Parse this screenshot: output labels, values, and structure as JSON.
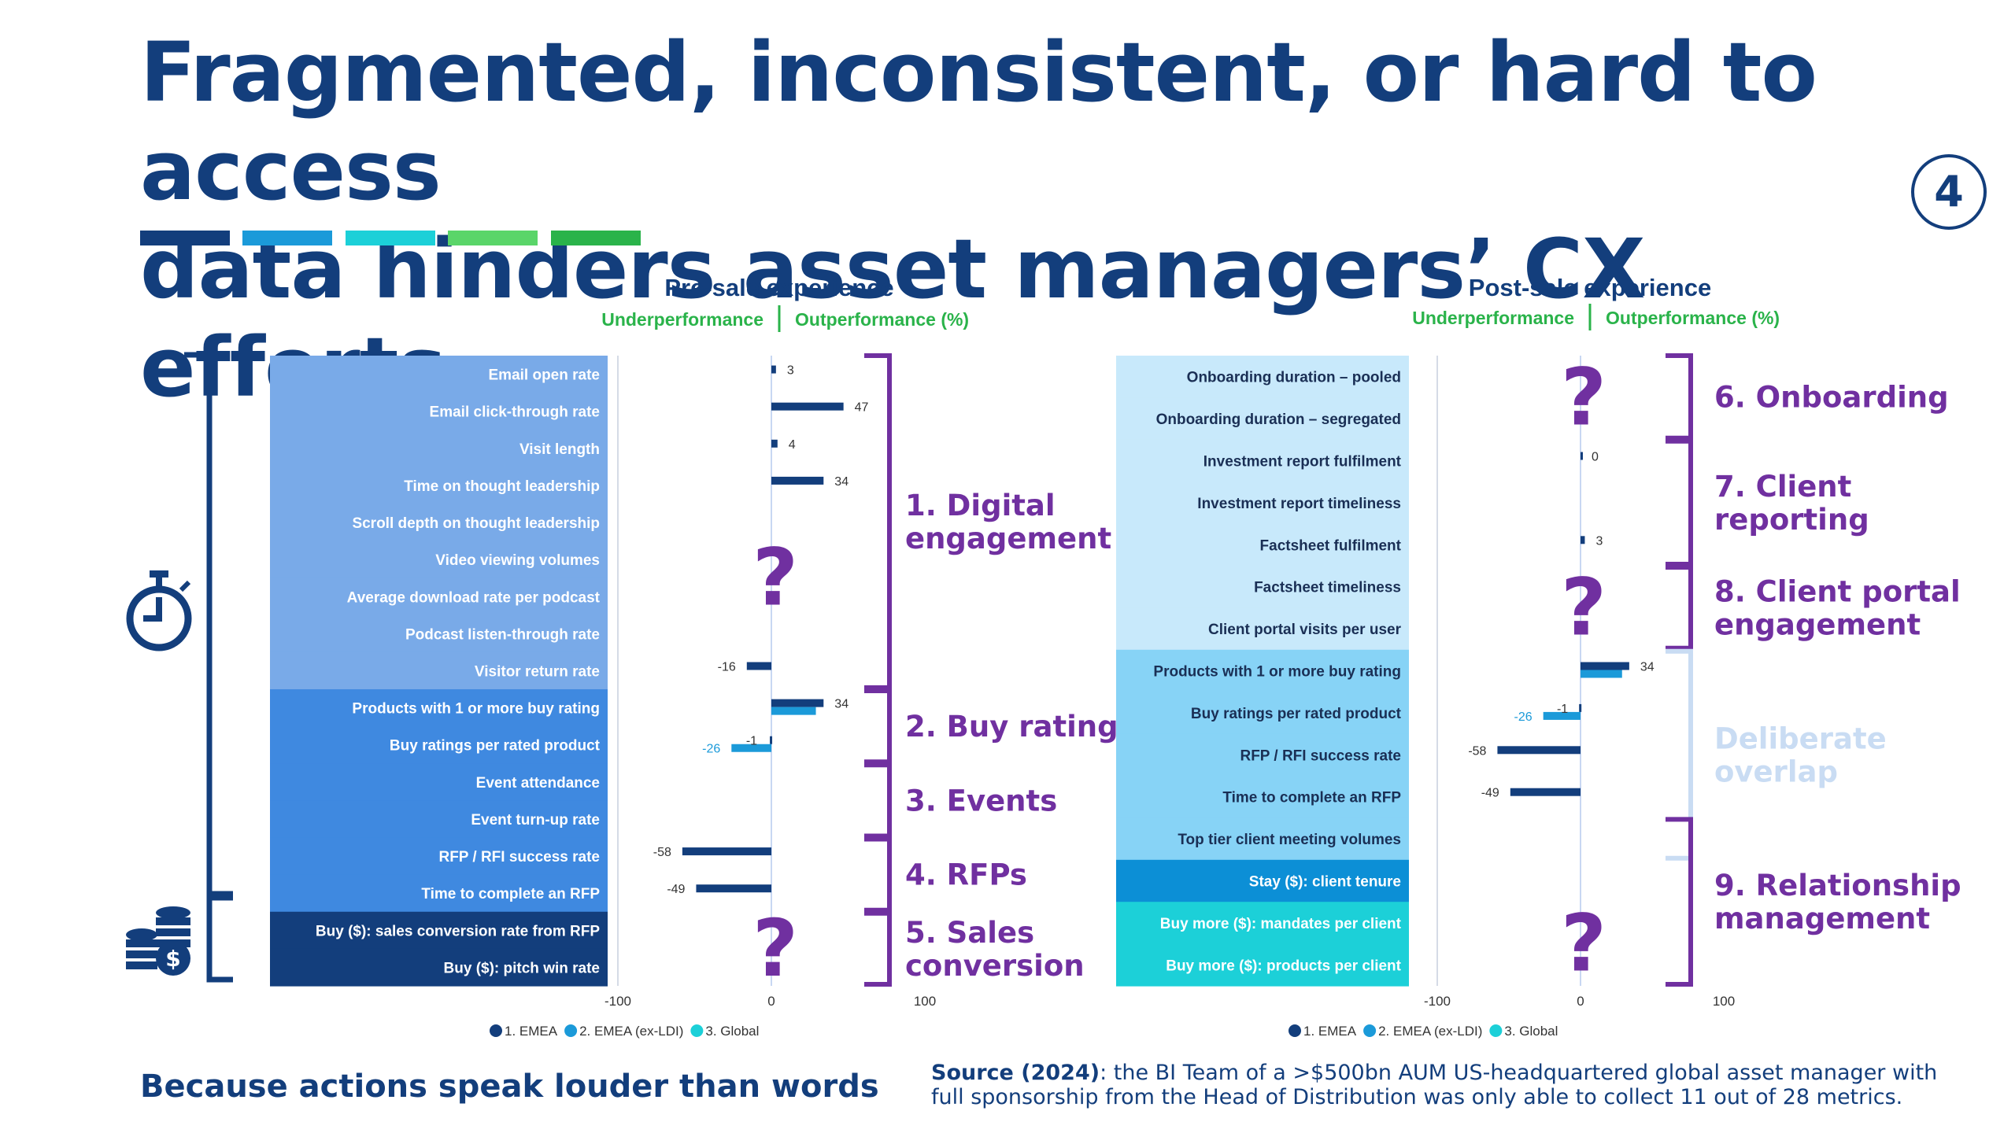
{
  "title_lines": [
    "Fragmented, inconsistent, or hard to access",
    "data hinders asset managers’ CX efforts"
  ],
  "page_number": "4",
  "tagline": "Because actions speak louder than words",
  "source_label": "Source (2024)",
  "source_text": ": the BI Team of a >$500bn AUM US-headquartered global asset manager with full sponsorship from the Head of Distribution was only able to collect 11 out of 28 metrics.",
  "accent_colors": [
    "#133e7c",
    "#1b9ad9",
    "#1cd0d8",
    "#5ad569",
    "#2ab34a"
  ],
  "icons": [
    "stopwatch-icon",
    "coins-icon",
    "dollar-icon"
  ],
  "chart_data": [
    {
      "type": "bar",
      "orientation": "horizontal",
      "title": "Pre-sale experience",
      "subtitle_left": "Underperformance",
      "subtitle_right": "Outperformance (%)",
      "xlim": [
        -100,
        100
      ],
      "xticks": [
        "-100",
        "0",
        "100"
      ],
      "legend": [
        "1. EMEA",
        "2. EMEA (ex-LDI)",
        "3. Global"
      ],
      "legend_position": "bottom",
      "series_colors": [
        "#133e7c",
        "#1b9ad9",
        "#1cd0d8"
      ],
      "categories": [
        "Email open rate",
        "Email click-through rate",
        "Visit length",
        "Time on thought leadership",
        "Scroll depth on thought leadership",
        "Video viewing volumes",
        "Average download rate per podcast",
        "Podcast listen-through rate",
        "Visitor return rate",
        "Products with 1 or more buy rating",
        "Buy ratings per rated product",
        "Event attendance",
        "Event turn-up rate",
        "RFP / RFI success rate",
        "Time to complete an RFP",
        "Buy ($): sales conversion rate from RFP",
        "Buy ($): pitch win rate"
      ],
      "row_colors": [
        "#79aae8",
        "#79aae8",
        "#79aae8",
        "#79aae8",
        "#79aae8",
        "#79aae8",
        "#79aae8",
        "#79aae8",
        "#79aae8",
        "#3f89e0",
        "#3f89e0",
        "#3f89e0",
        "#3f89e0",
        "#3f89e0",
        "#3f89e0",
        "#133e7c",
        "#133e7c"
      ],
      "series": [
        {
          "name": "1. EMEA",
          "values": [
            3,
            47,
            4,
            34,
            null,
            null,
            null,
            null,
            -16,
            34,
            -1,
            null,
            null,
            -58,
            -49,
            null,
            null
          ]
        },
        {
          "name": "2. EMEA (ex-LDI)",
          "values": [
            null,
            null,
            null,
            null,
            null,
            null,
            null,
            null,
            null,
            29,
            -26,
            null,
            null,
            null,
            null,
            null,
            null
          ]
        }
      ],
      "data_labels": [
        {
          "row": 0,
          "series": 0,
          "text": "3"
        },
        {
          "row": 1,
          "series": 0,
          "text": "47"
        },
        {
          "row": 2,
          "series": 0,
          "text": "4"
        },
        {
          "row": 3,
          "series": 0,
          "text": "34"
        },
        {
          "row": 8,
          "series": 0,
          "text": "-16"
        },
        {
          "row": 9,
          "series": 0,
          "text": "34"
        },
        {
          "row": 10,
          "series": 0,
          "text": "-1"
        },
        {
          "row": 10,
          "series": 1,
          "text": "-26"
        },
        {
          "row": 13,
          "series": 0,
          "text": "-58"
        },
        {
          "row": 14,
          "series": 0,
          "text": "-49"
        }
      ],
      "question_marks": [
        {
          "rows": [
            4,
            7
          ],
          "text": "?"
        },
        {
          "rows": [
            15,
            16
          ],
          "text": "?"
        }
      ],
      "groups": [
        {
          "rows": [
            0,
            8
          ],
          "label": "1. Digital engagement",
          "color": "#7030a0"
        },
        {
          "rows": [
            9,
            10
          ],
          "label": "2. Buy ratings",
          "color": "#7030a0"
        },
        {
          "rows": [
            11,
            12
          ],
          "label": "3. Events",
          "color": "#7030a0"
        },
        {
          "rows": [
            13,
            14
          ],
          "label": "4. RFPs",
          "color": "#7030a0"
        },
        {
          "rows": [
            15,
            16
          ],
          "label": "5. Sales conversion",
          "color": "#7030a0"
        }
      ]
    },
    {
      "type": "bar",
      "orientation": "horizontal",
      "title": "Post-sale experience",
      "subtitle_left": "Underperformance",
      "subtitle_right": "Outperformance (%)",
      "xlim": [
        -100,
        100
      ],
      "xticks": [
        "-100",
        "0",
        "100"
      ],
      "legend": [
        "1. EMEA",
        "2. EMEA (ex-LDI)",
        "3. Global"
      ],
      "legend_position": "bottom",
      "series_colors": [
        "#133e7c",
        "#1b9ad9",
        "#1cd0d8"
      ],
      "categories": [
        "Onboarding duration – pooled",
        "Onboarding duration – segregated",
        "Investment report fulfilment",
        "Investment report timeliness",
        "Factsheet fulfilment",
        "Factsheet timeliness",
        "Client portal visits per user",
        "Products with 1 or more buy rating",
        "Buy ratings per rated product",
        "RFP / RFI success rate",
        "Time to complete an RFP",
        "Top tier client meeting volumes",
        "Stay ($): client tenure",
        "Buy more ($): mandates per client",
        "Buy more ($): products per client"
      ],
      "row_colors": [
        "#c8e9fb",
        "#c8e9fb",
        "#c8e9fb",
        "#c8e9fb",
        "#c8e9fb",
        "#c8e9fb",
        "#c8e9fb",
        "#87d3f6",
        "#87d3f6",
        "#87d3f6",
        "#87d3f6",
        "#87d3f6",
        "#0c8fd6",
        "#1cd0d8",
        "#1cd0d8"
      ],
      "series": [
        {
          "name": "1. EMEA",
          "values": [
            null,
            null,
            0,
            null,
            3,
            null,
            null,
            34,
            -1,
            -58,
            -49,
            null,
            null,
            null,
            null
          ]
        },
        {
          "name": "2. EMEA (ex-LDI)",
          "values": [
            null,
            null,
            null,
            null,
            null,
            null,
            null,
            29,
            -26,
            null,
            null,
            null,
            null,
            null,
            null
          ]
        }
      ],
      "data_labels": [
        {
          "row": 2,
          "series": 0,
          "text": "0"
        },
        {
          "row": 4,
          "series": 0,
          "text": "3"
        },
        {
          "row": 7,
          "series": 0,
          "text": "34"
        },
        {
          "row": 8,
          "series": 0,
          "text": "-1"
        },
        {
          "row": 8,
          "series": 1,
          "text": "-26"
        },
        {
          "row": 9,
          "series": 0,
          "text": "-58"
        },
        {
          "row": 10,
          "series": 0,
          "text": "-49"
        }
      ],
      "question_marks": [
        {
          "rows": [
            0,
            1
          ],
          "text": "?"
        },
        {
          "rows": [
            5,
            6
          ],
          "text": "?"
        },
        {
          "rows": [
            13,
            14
          ],
          "text": "?"
        }
      ],
      "groups": [
        {
          "rows": [
            0,
            1
          ],
          "label": "6. Onboarding",
          "color": "#7030a0"
        },
        {
          "rows": [
            2,
            4
          ],
          "label": "7. Client reporting",
          "color": "#7030a0"
        },
        {
          "rows": [
            5,
            6
          ],
          "label": "8. Client portal engagement",
          "color": "#7030a0"
        },
        {
          "rows": [
            7,
            11
          ],
          "label": "Deliberate overlap",
          "color": "#c9dcf3"
        },
        {
          "rows": [
            11,
            14
          ],
          "label": "9. Relationship management",
          "color": "#7030a0"
        }
      ]
    }
  ]
}
